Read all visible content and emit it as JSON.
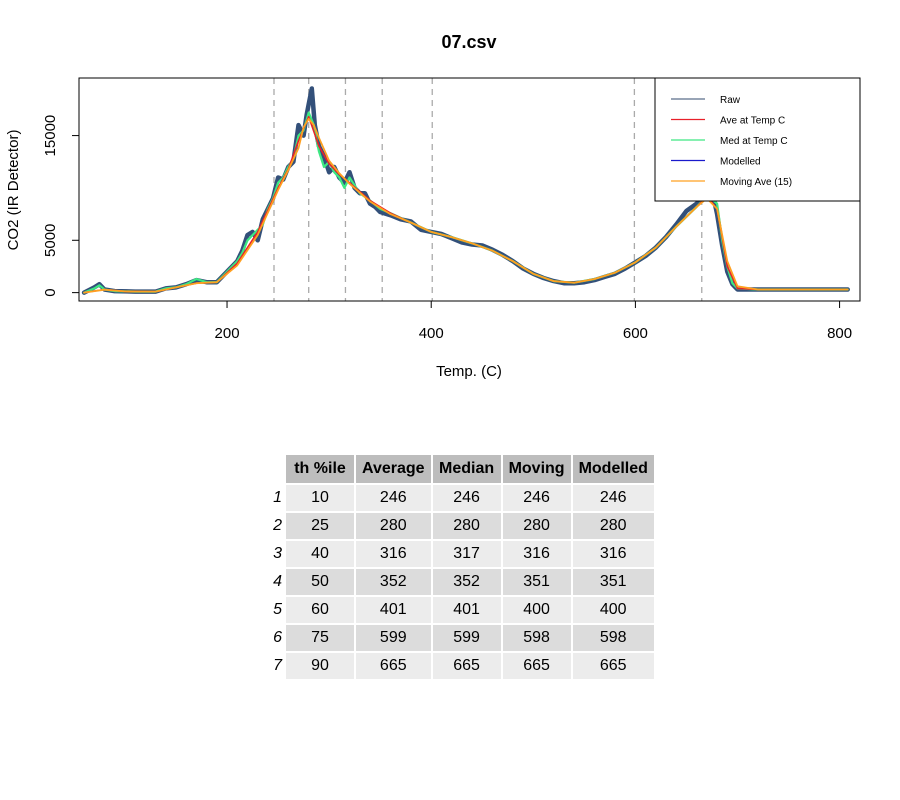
{
  "chart_data": {
    "type": "line",
    "title": "07.csv",
    "xlabel": "Temp. (C)",
    "ylabel": "CO2 (IR Detector)",
    "xlim": [
      55,
      820
    ],
    "ylim": [
      -800,
      20500
    ],
    "x_ticks": [
      200,
      400,
      600,
      800
    ],
    "x_tick_labels": [
      "200",
      "400",
      "600",
      "800"
    ],
    "y_ticks": [
      0,
      5000,
      15000
    ],
    "y_tick_labels": [
      "0",
      "5000",
      "15000"
    ],
    "vlines": [
      246,
      280,
      316,
      352,
      401,
      599,
      665
    ],
    "legend_position": "top-right",
    "legend": [
      {
        "label": "Raw",
        "color": "#5b6e8a"
      },
      {
        "label": "Ave at Temp C",
        "color": "#e8202a"
      },
      {
        "label": "Med at Temp C",
        "color": "#3de882"
      },
      {
        "label": "Modelled",
        "color": "#1a1acc"
      },
      {
        "label": "Moving Ave (15)",
        "color": "#ffa020"
      }
    ],
    "series": [
      {
        "name": "Raw",
        "color": "#33507a",
        "x": [
          60,
          70,
          75,
          80,
          90,
          110,
          130,
          140,
          150,
          160,
          170,
          180,
          190,
          200,
          210,
          215,
          220,
          225,
          230,
          235,
          240,
          245,
          250,
          255,
          260,
          265,
          270,
          275,
          278,
          280,
          283,
          286,
          290,
          295,
          300,
          305,
          310,
          315,
          320,
          325,
          330,
          335,
          340,
          345,
          350,
          360,
          370,
          380,
          390,
          400,
          410,
          420,
          430,
          440,
          450,
          460,
          470,
          480,
          490,
          500,
          510,
          520,
          530,
          540,
          550,
          560,
          570,
          580,
          590,
          600,
          610,
          620,
          630,
          640,
          650,
          660,
          665,
          670,
          675,
          680,
          685,
          690,
          695,
          700,
          705,
          710,
          720,
          740,
          760,
          780,
          800,
          808
        ],
        "y": [
          0,
          500,
          800,
          300,
          150,
          100,
          100,
          400,
          500,
          800,
          1200,
          1000,
          1000,
          2000,
          3000,
          4000,
          5500,
          5800,
          5000,
          7000,
          8000,
          9000,
          11000,
          10800,
          12000,
          12500,
          16000,
          15000,
          17000,
          18000,
          19500,
          16000,
          14000,
          13000,
          11500,
          12000,
          11000,
          10500,
          11500,
          10000,
          9500,
          9500,
          8500,
          8200,
          7700,
          7400,
          7000,
          6800,
          6000,
          5800,
          5600,
          5200,
          4800,
          4600,
          4500,
          4100,
          3600,
          3000,
          2300,
          1800,
          1400,
          1100,
          900,
          900,
          1000,
          1200,
          1500,
          1800,
          2300,
          2900,
          3500,
          4300,
          5300,
          6500,
          7800,
          8500,
          9000,
          9600,
          9800,
          7500,
          4500,
          2000,
          800,
          300,
          300,
          300,
          300,
          300,
          300,
          300,
          300,
          300
        ]
      },
      {
        "name": "Med at Temp C",
        "color": "#3de882",
        "x": [
          60,
          70,
          75,
          80,
          90,
          110,
          130,
          140,
          150,
          160,
          170,
          180,
          190,
          200,
          210,
          215,
          220,
          225,
          230,
          235,
          240,
          245,
          250,
          255,
          260,
          265,
          270,
          275,
          280,
          285,
          290,
          295,
          300,
          305,
          310,
          315,
          320,
          330,
          340,
          350,
          360,
          380,
          400,
          420,
          440,
          460,
          480,
          500,
          520,
          540,
          560,
          580,
          600,
          620,
          640,
          660,
          670,
          680,
          685,
          690,
          695,
          700,
          720,
          760,
          808
        ],
        "y": [
          0,
          400,
          700,
          300,
          150,
          100,
          100,
          400,
          500,
          800,
          1300,
          1000,
          1000,
          2000,
          3000,
          3800,
          5000,
          5500,
          6000,
          6500,
          8000,
          9000,
          10500,
          11000,
          12000,
          12800,
          15000,
          15500,
          17200,
          16000,
          13500,
          12000,
          12500,
          11500,
          11000,
          10000,
          11000,
          9500,
          8800,
          8000,
          7600,
          6700,
          5800,
          5300,
          4700,
          4000,
          3000,
          1800,
          1100,
          950,
          1300,
          1900,
          2900,
          4300,
          6300,
          8200,
          9300,
          8500,
          5000,
          2500,
          900,
          400,
          300,
          300,
          300
        ]
      },
      {
        "name": "Ave at Temp C",
        "color": "#e8202a",
        "x": [
          60,
          80,
          100,
          130,
          150,
          170,
          190,
          210,
          230,
          250,
          260,
          270,
          280,
          290,
          300,
          310,
          320,
          340,
          360,
          380,
          400,
          420,
          440,
          460,
          480,
          500,
          520,
          540,
          560,
          580,
          600,
          620,
          640,
          660,
          670,
          680,
          690,
          700,
          720,
          808
        ],
        "y": [
          0,
          300,
          120,
          100,
          500,
          900,
          1000,
          2800,
          5800,
          10000,
          11800,
          14500,
          16800,
          14000,
          12300,
          11300,
          10500,
          8800,
          7600,
          6700,
          5800,
          5300,
          4700,
          4000,
          3000,
          1800,
          1100,
          950,
          1300,
          1900,
          2900,
          4300,
          6300,
          8200,
          9200,
          8000,
          2500,
          400,
          300,
          300
        ]
      },
      {
        "name": "Moving Ave (15)",
        "color": "#ffa020",
        "x": [
          60,
          80,
          100,
          130,
          150,
          170,
          190,
          210,
          230,
          250,
          260,
          270,
          275,
          280,
          285,
          290,
          300,
          310,
          320,
          340,
          360,
          380,
          400,
          420,
          440,
          460,
          480,
          500,
          520,
          540,
          560,
          580,
          600,
          620,
          640,
          660,
          670,
          680,
          690,
          700,
          720,
          808
        ],
        "y": [
          0,
          280,
          120,
          100,
          500,
          900,
          1000,
          2600,
          5500,
          9800,
          11700,
          13800,
          15800,
          16600,
          16000,
          14800,
          12600,
          11400,
          10400,
          8700,
          7500,
          6700,
          5800,
          5300,
          4700,
          4000,
          3000,
          1800,
          1100,
          950,
          1300,
          1900,
          2900,
          4300,
          6300,
          8200,
          9000,
          8000,
          3000,
          600,
          300,
          300
        ]
      }
    ],
    "table": {
      "headers": [
        "th %ile",
        "Average",
        "Median",
        "Moving",
        "Modelled"
      ],
      "rows": [
        {
          "rowname": "1",
          "values": [
            "10",
            "246",
            "246",
            "246",
            "246"
          ]
        },
        {
          "rowname": "2",
          "values": [
            "25",
            "280",
            "280",
            "280",
            "280"
          ]
        },
        {
          "rowname": "3",
          "values": [
            "40",
            "316",
            "317",
            "316",
            "316"
          ]
        },
        {
          "rowname": "4",
          "values": [
            "50",
            "352",
            "352",
            "351",
            "351"
          ]
        },
        {
          "rowname": "5",
          "values": [
            "60",
            "401",
            "401",
            "400",
            "400"
          ]
        },
        {
          "rowname": "6",
          "values": [
            "75",
            "599",
            "599",
            "598",
            "598"
          ]
        },
        {
          "rowname": "7",
          "values": [
            "90",
            "665",
            "665",
            "665",
            "665"
          ]
        }
      ]
    }
  }
}
